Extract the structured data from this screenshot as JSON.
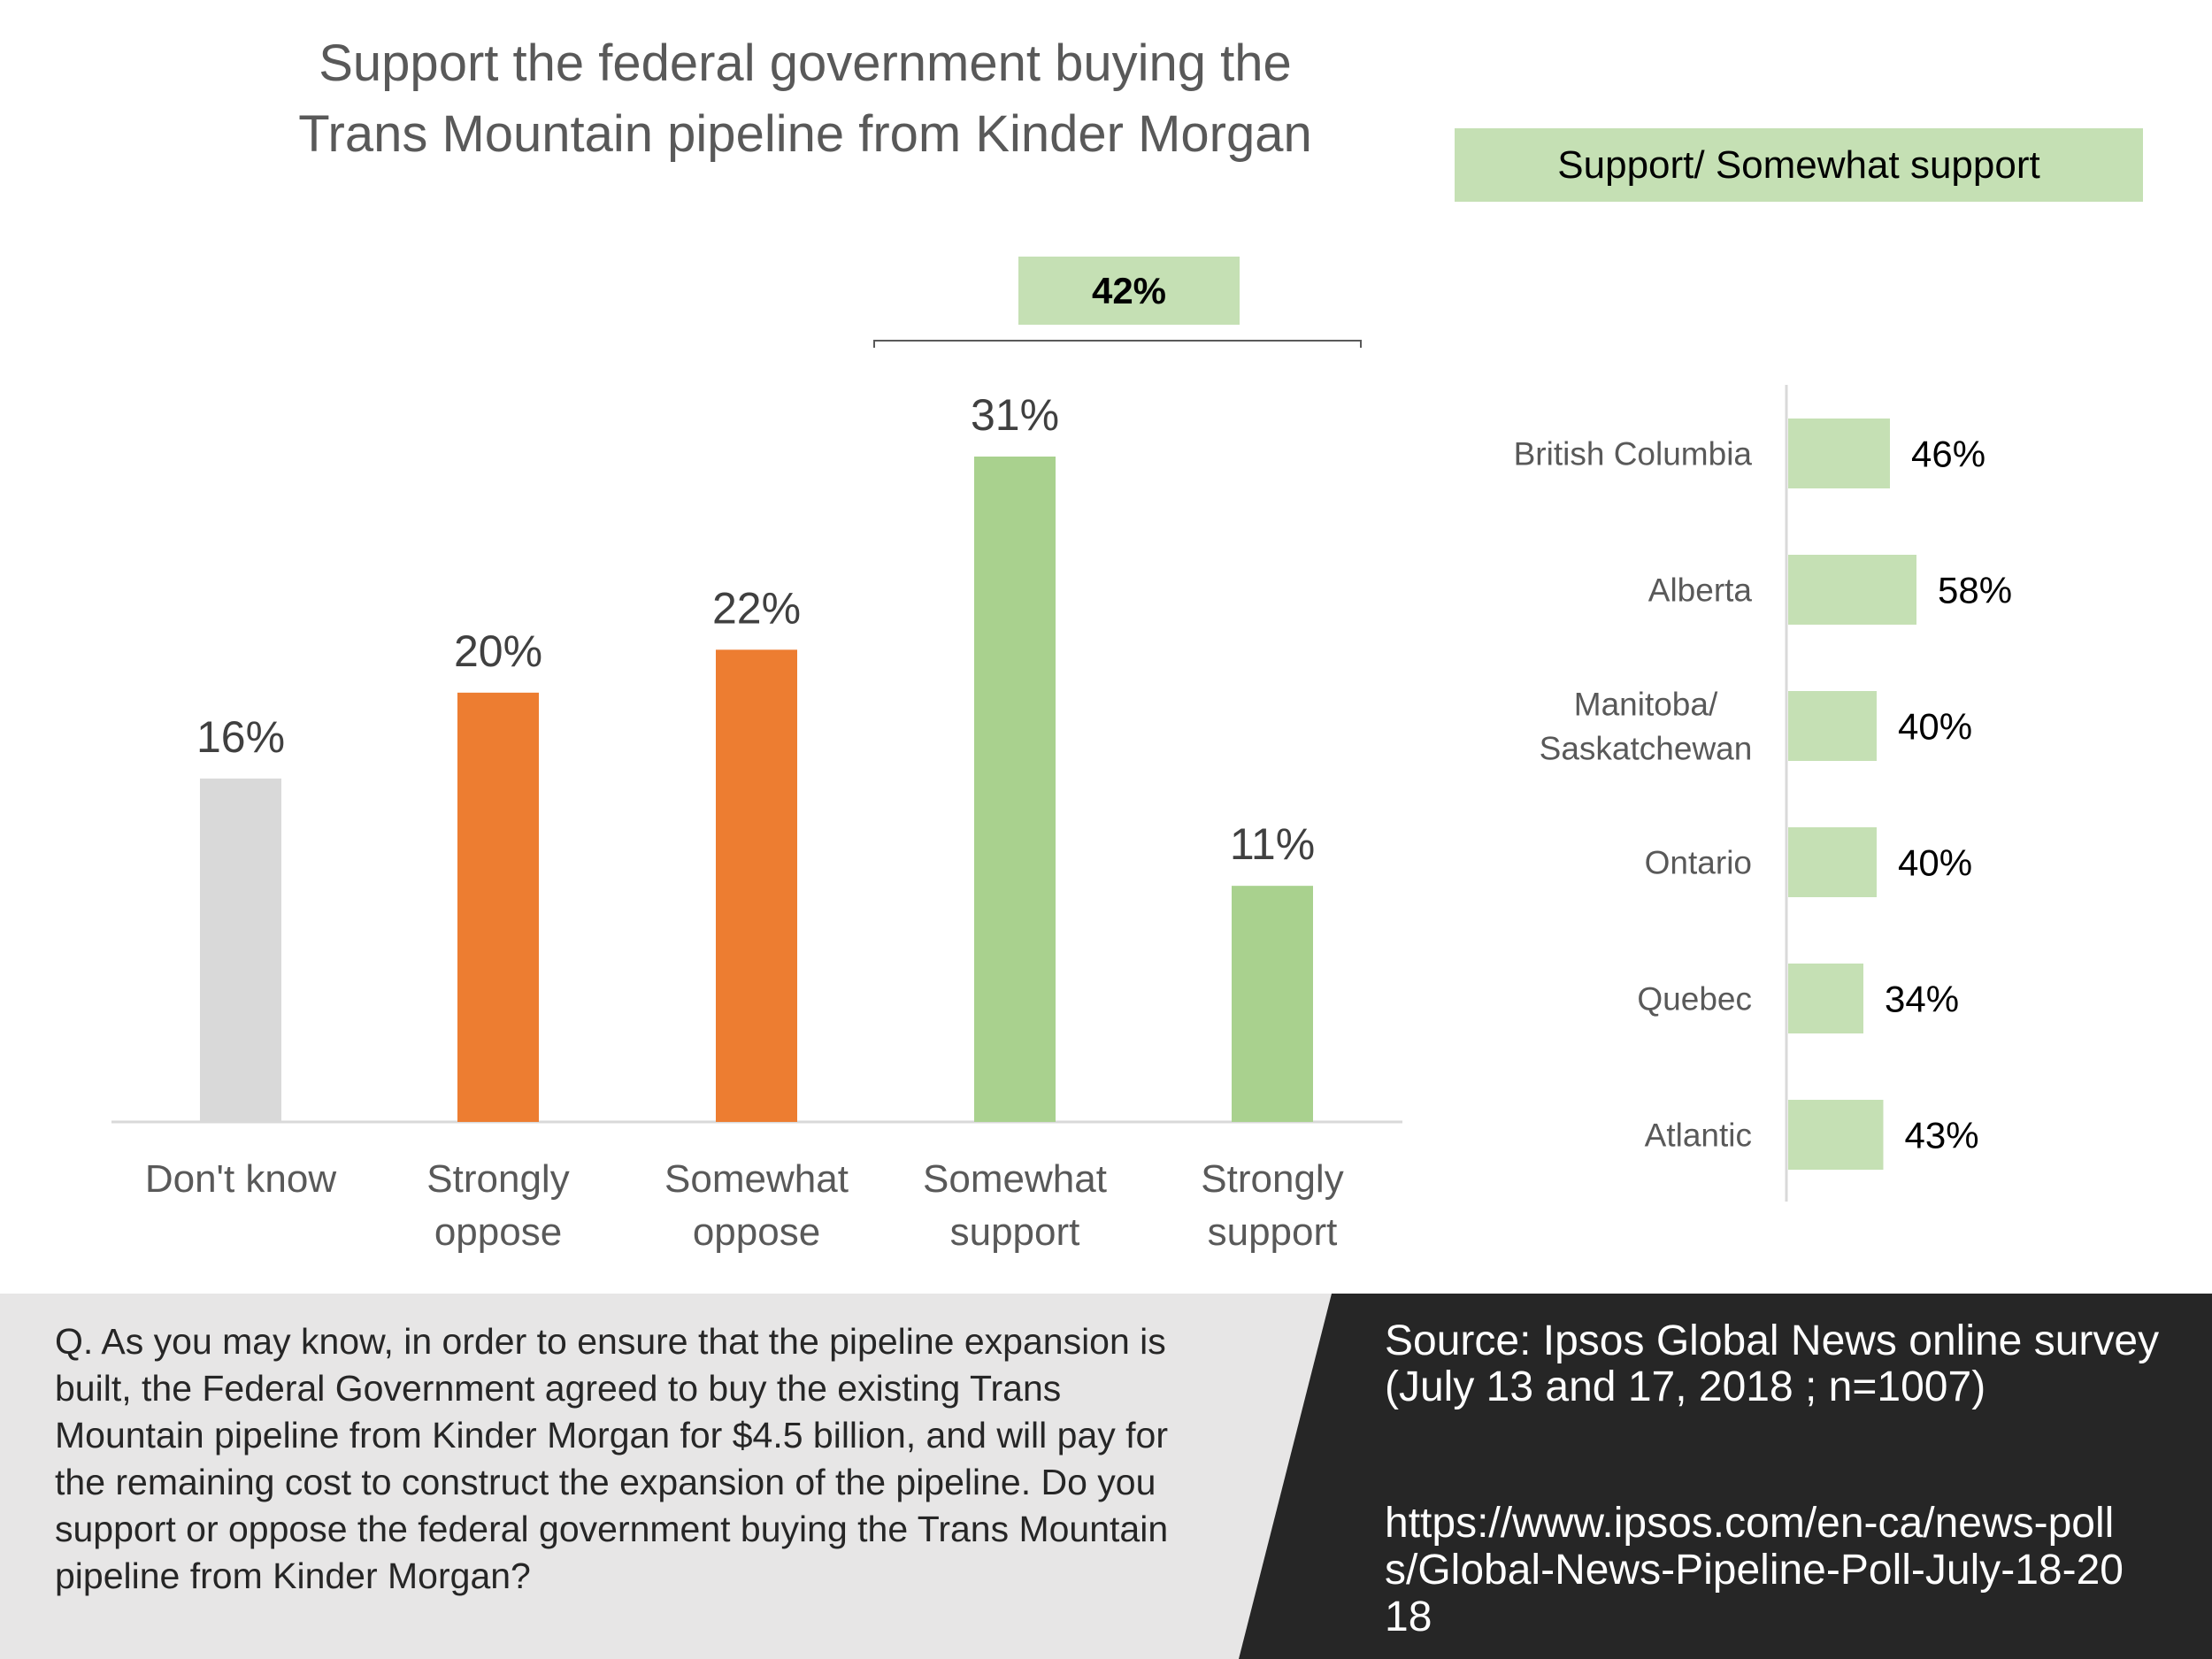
{
  "title_lines": [
    "Support the federal government buying the",
    "Trans Mountain pipeline from Kinder Morgan"
  ],
  "legend_label": "Support/ Somewhat support",
  "total_support_label": "42%",
  "colors": {
    "dont_know": "#d9d9d9",
    "oppose": "#ed7d31",
    "support": "#a9d18e",
    "regional_bar": "#c5e0b4",
    "label_text": "#404040",
    "footer_dark": "#262626",
    "footer_light": "#e7e6e6"
  },
  "chart_data": [
    {
      "type": "bar",
      "title": "Support the federal government buying the Trans Mountain pipeline from Kinder Morgan",
      "categories": [
        [
          "Don't know"
        ],
        [
          "Strongly",
          "oppose"
        ],
        [
          "Somewhat",
          "oppose"
        ],
        [
          "Somewhat",
          "support"
        ],
        [
          "Strongly",
          "support"
        ]
      ],
      "values": [
        16,
        20,
        22,
        31,
        11
      ],
      "value_labels": [
        "16%",
        "20%",
        "22%",
        "31%",
        "11%"
      ],
      "bar_colors": [
        "#d9d9d9",
        "#ed7d31",
        "#ed7d31",
        "#a9d18e",
        "#a9d18e"
      ],
      "ylim": [
        0,
        31
      ],
      "grid": false
    },
    {
      "type": "bar",
      "orientation": "horizontal",
      "title": "Support/ Somewhat support",
      "categories": [
        [
          "British Columbia"
        ],
        [
          "Alberta"
        ],
        [
          "Manitoba/",
          "Saskatchewan"
        ],
        [
          "Ontario"
        ],
        [
          "Quebec"
        ],
        [
          "Atlantic"
        ]
      ],
      "values": [
        46,
        58,
        40,
        40,
        34,
        43
      ],
      "value_labels": [
        "46%",
        "58%",
        "40%",
        "40%",
        "34%",
        "43%"
      ],
      "xlim": [
        0,
        100
      ],
      "grid": false
    }
  ],
  "question": "Q.   As you may know, in order to ensure that the pipeline expansion is built, the Federal Government agreed to buy the existing Trans Mountain pipeline from Kinder Morgan for $4.5 billion, and will pay for the remaining cost to construct the expansion of the pipeline. Do you support or oppose the federal government buying the Trans Mountain pipeline from Kinder Morgan?",
  "source": "Source:  Ipsos Global News online survey (July 13 and 17, 2018 ; n=1007)",
  "url": "https://www.ipsos.com/en-ca/news-polls/Global-News-Pipeline-Poll-July-18-2018"
}
